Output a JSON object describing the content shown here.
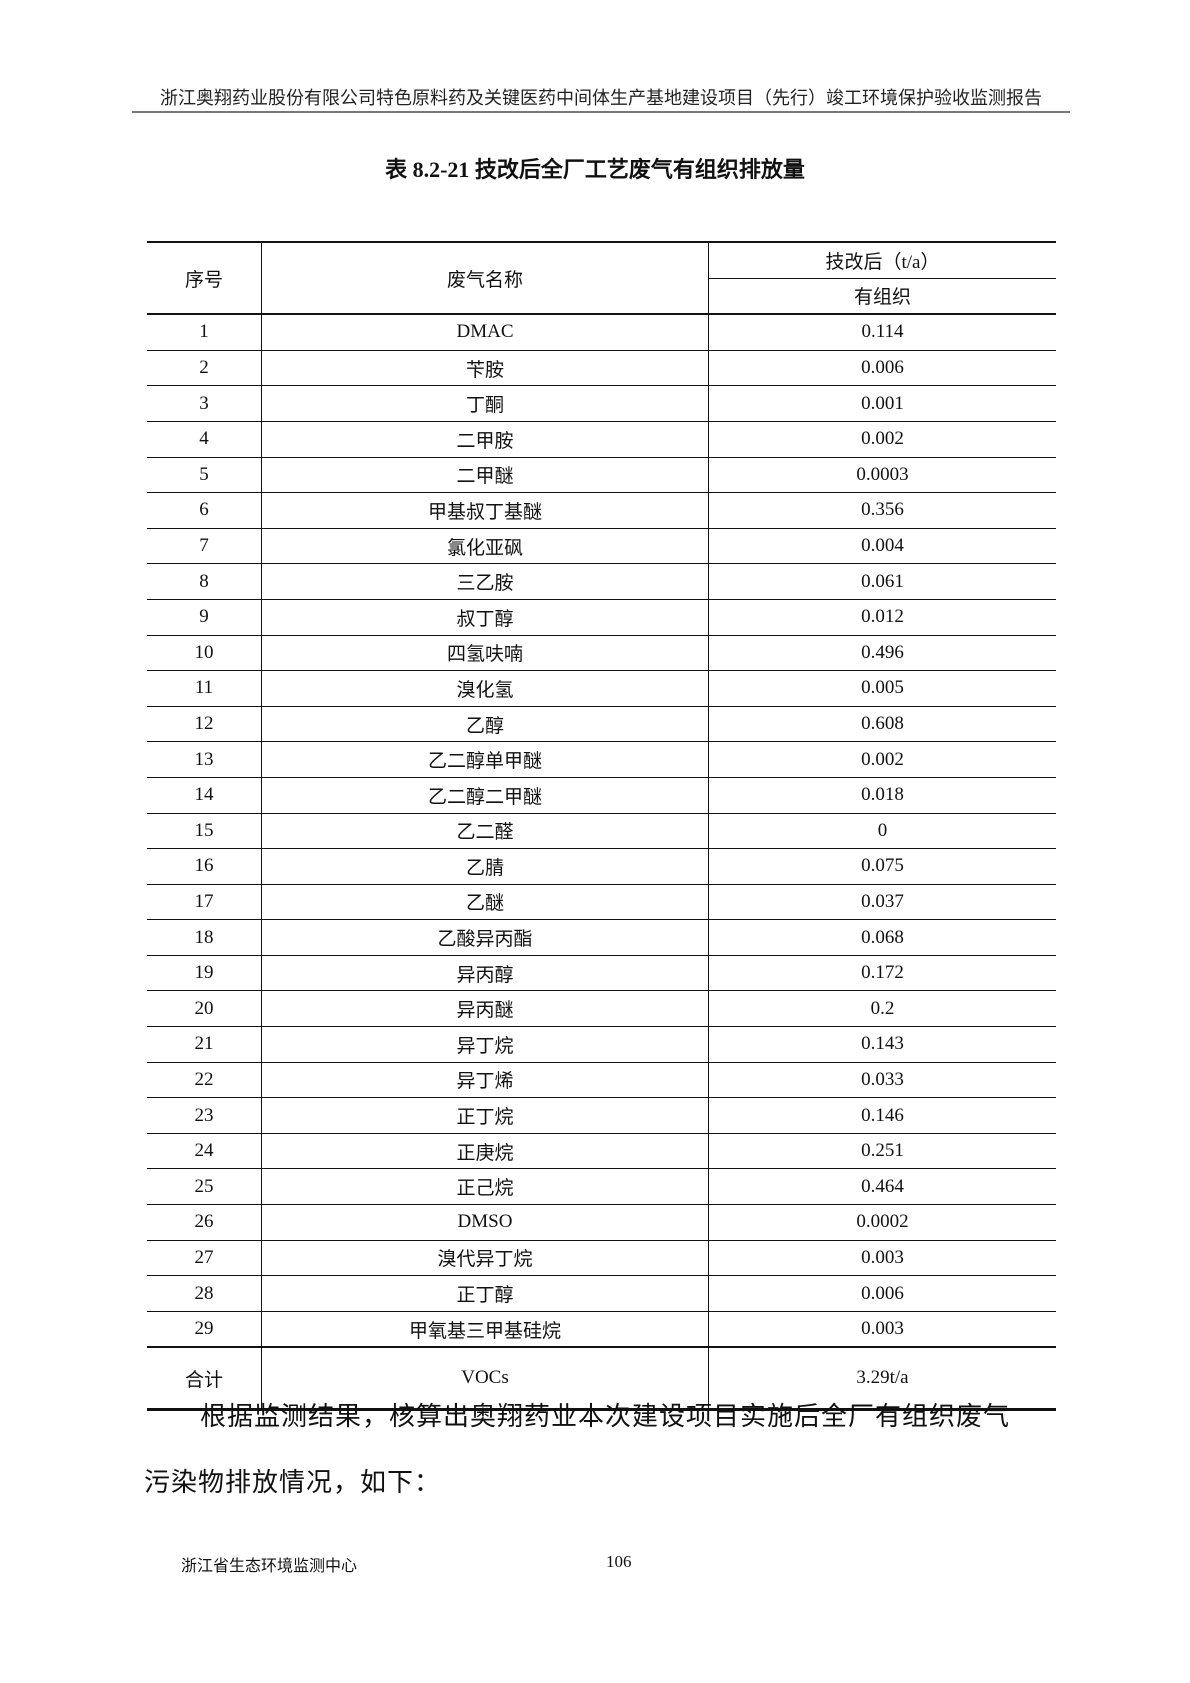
{
  "header": {
    "text": "浙江奥翔药业股份有限公司特色原料药及关键医药中间体生产基地建设项目（先行）竣工环境保护验收监测报告"
  },
  "title": "表 8.2-21  技改后全厂工艺废气有组织排放量",
  "table": {
    "headers": {
      "no": "序号",
      "name": "废气名称",
      "group": "技改后（t/a）",
      "sub": "有组织"
    },
    "rows": [
      [
        "1",
        "DMAC",
        "0.114"
      ],
      [
        "2",
        "苄胺",
        "0.006"
      ],
      [
        "3",
        "丁酮",
        "0.001"
      ],
      [
        "4",
        "二甲胺",
        "0.002"
      ],
      [
        "5",
        "二甲醚",
        "0.0003"
      ],
      [
        "6",
        "甲基叔丁基醚",
        "0.356"
      ],
      [
        "7",
        "氯化亚砜",
        "0.004"
      ],
      [
        "8",
        "三乙胺",
        "0.061"
      ],
      [
        "9",
        "叔丁醇",
        "0.012"
      ],
      [
        "10",
        "四氢呋喃",
        "0.496"
      ],
      [
        "11",
        "溴化氢",
        "0.005"
      ],
      [
        "12",
        "乙醇",
        "0.608"
      ],
      [
        "13",
        "乙二醇单甲醚",
        "0.002"
      ],
      [
        "14",
        "乙二醇二甲醚",
        "0.018"
      ],
      [
        "15",
        "乙二醛",
        "0"
      ],
      [
        "16",
        "乙腈",
        "0.075"
      ],
      [
        "17",
        "乙醚",
        "0.037"
      ],
      [
        "18",
        "乙酸异丙酯",
        "0.068"
      ],
      [
        "19",
        "异丙醇",
        "0.172"
      ],
      [
        "20",
        "异丙醚",
        "0.2"
      ],
      [
        "21",
        "异丁烷",
        "0.143"
      ],
      [
        "22",
        "异丁烯",
        "0.033"
      ],
      [
        "23",
        "正丁烷",
        "0.146"
      ],
      [
        "24",
        "正庚烷",
        "0.251"
      ],
      [
        "25",
        "正己烷",
        "0.464"
      ],
      [
        "26",
        "DMSO",
        "0.0002"
      ],
      [
        "27",
        "溴代异丁烷",
        "0.003"
      ],
      [
        "28",
        "正丁醇",
        "0.006"
      ],
      [
        "29",
        "甲氧基三甲基硅烷",
        "0.003"
      ]
    ],
    "total": {
      "label": "合计",
      "name": "VOCs",
      "value": "3.29t/a"
    }
  },
  "paragraph": {
    "line1": "根据监测结果，核算出奥翔药业本次建设项目实施后全厂有组织废气",
    "line2": "污染物排放情况，如下："
  },
  "footer": {
    "org": "浙江省生态环境监测中心",
    "page": "106"
  }
}
